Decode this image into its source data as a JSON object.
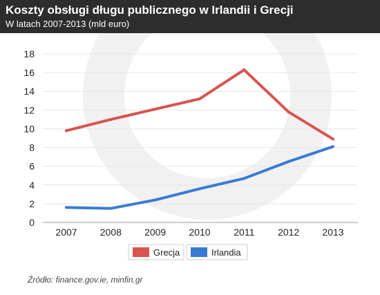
{
  "header": {
    "title": "Koszty obsługi długu publicznego w Irlandii i Grecji",
    "subtitle": "W latach 2007-2013 (mld euro)"
  },
  "source": "Źródło: finance.gov.ie, minfin.gr",
  "colors": {
    "header_bg": "#2d2d2d",
    "grecja": "#d9534f",
    "irlandia": "#3a7bd5"
  },
  "chart_data": {
    "type": "line",
    "title": "Koszty obsługi długu publicznego w Irlandii i Grecji",
    "subtitle": "W latach 2007-2013 (mld euro)",
    "xlabel": "",
    "ylabel": "",
    "categories": [
      "2007",
      "2008",
      "2009",
      "2010",
      "2011",
      "2012",
      "2013"
    ],
    "ylim": [
      0,
      18
    ],
    "yticks": [
      0,
      2,
      4,
      6,
      8,
      10,
      12,
      14,
      16,
      18
    ],
    "grid": true,
    "legend": "bottom-center",
    "series": [
      {
        "name": "Grecja",
        "color": "#d9534f",
        "values": [
          9.8,
          11.0,
          12.1,
          13.2,
          16.3,
          11.8,
          8.9
        ]
      },
      {
        "name": "Irlandia",
        "color": "#3a7bd5",
        "values": [
          1.6,
          1.5,
          2.4,
          3.6,
          4.7,
          6.5,
          8.1
        ]
      }
    ]
  }
}
